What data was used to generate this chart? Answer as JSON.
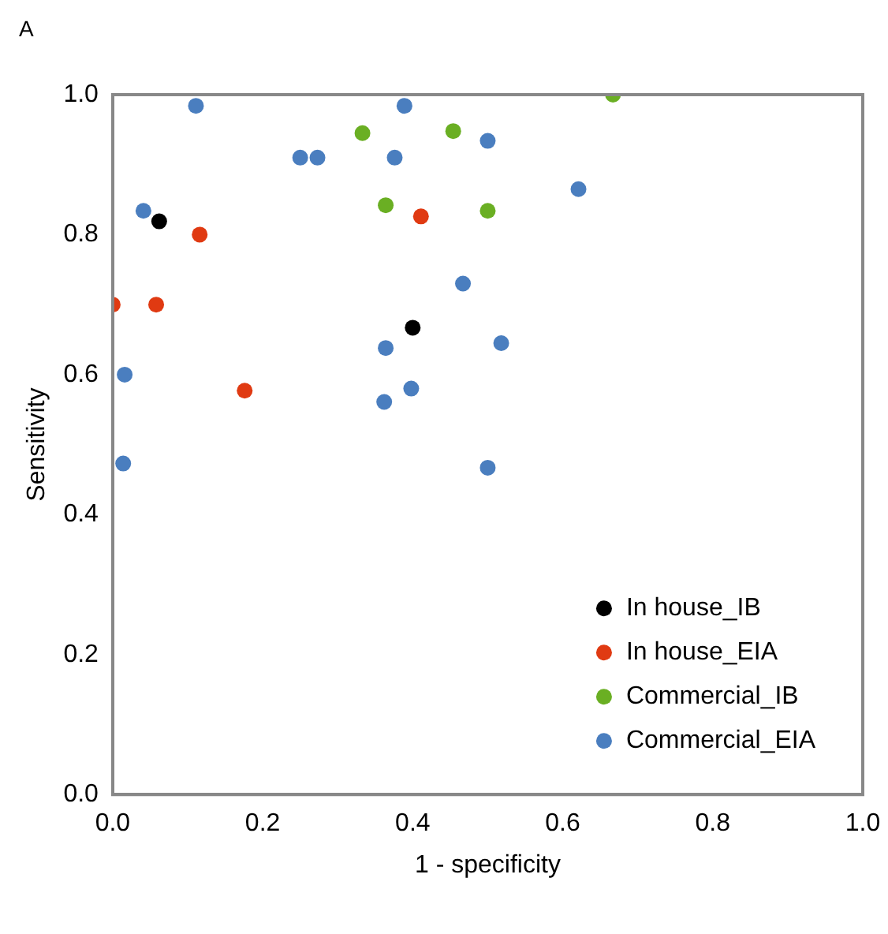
{
  "chart_data": {
    "type": "scatter",
    "xlabel": "1 - specificity",
    "ylabel": "Sensitivity",
    "annotations": [
      "A"
    ],
    "xlim": [
      0,
      1
    ],
    "ylim": [
      0,
      1
    ],
    "xticks": [
      {
        "value": 0,
        "label": "0.0"
      },
      {
        "value": 0.2,
        "label": "0.2"
      },
      {
        "value": 0.4,
        "label": "0.4"
      },
      {
        "value": 0.6,
        "label": "0.6"
      },
      {
        "value": 0.8,
        "label": "0.8"
      },
      {
        "value": 1,
        "label": "1.0"
      }
    ],
    "yticks": [
      {
        "value": 0,
        "label": "0.0"
      },
      {
        "value": 0.2,
        "label": "0.2"
      },
      {
        "value": 0.4,
        "label": "0.4"
      },
      {
        "value": 0.6,
        "label": "0.6"
      },
      {
        "value": 0.8,
        "label": "0.8"
      },
      {
        "value": 1,
        "label": "1.0"
      }
    ],
    "grid": false,
    "legend": "bottom right",
    "marker": "circle",
    "series": [
      {
        "name": "In house_IB",
        "color": "#000000",
        "x": [
          0.062,
          0.4
        ],
        "values": [
          0.819,
          0.667
        ]
      },
      {
        "name": "In house_EIA",
        "color": "#e03a12",
        "x": [
          0.116,
          0.411,
          0,
          0.058,
          0.176
        ],
        "values": [
          0.8,
          0.826,
          0.7,
          0.7,
          0.577
        ]
      },
      {
        "name": "Commercial_IB",
        "color": "#6aaf23",
        "x": [
          0.333,
          0.454,
          0.364,
          0.667,
          0.5
        ],
        "values": [
          0.945,
          0.948,
          0.842,
          1,
          0.834
        ]
      },
      {
        "name": "Commercial_EIA",
        "color": "#4a7ebf",
        "x": [
          0.111,
          0.389,
          0.25,
          0.273,
          0.376,
          0.041,
          0.467,
          0.364,
          0.016,
          0.362,
          0.398,
          0.5,
          0.621,
          0.518,
          0.014,
          0.5
        ],
        "values": [
          0.984,
          0.984,
          0.91,
          0.91,
          0.91,
          0.834,
          0.73,
          0.638,
          0.6,
          0.561,
          0.58,
          0.934,
          0.865,
          0.645,
          0.473,
          0.467
        ]
      }
    ]
  }
}
